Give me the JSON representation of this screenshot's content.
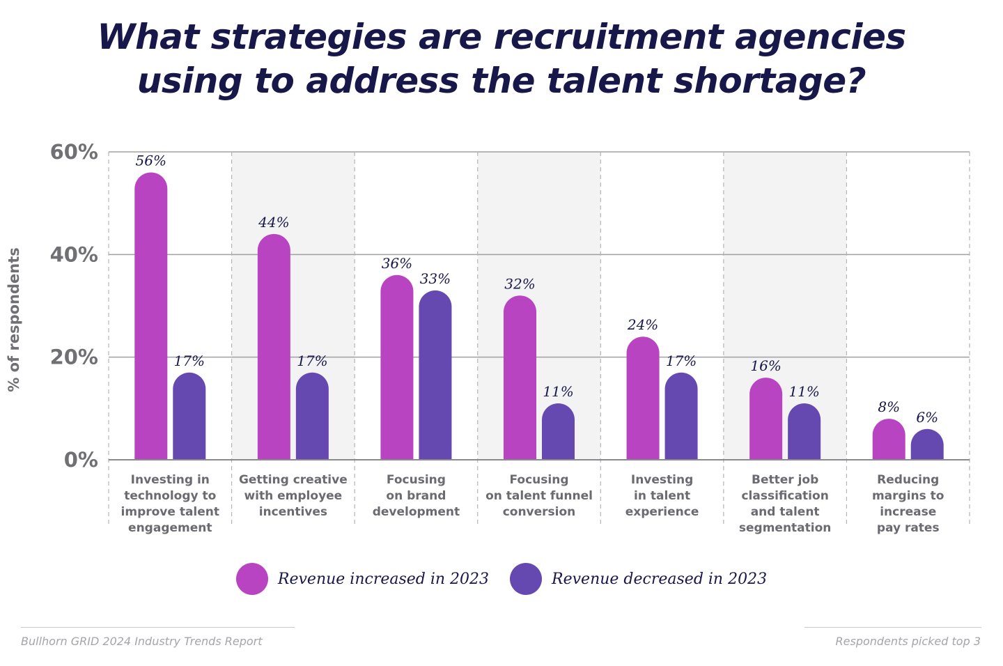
{
  "title_lines": [
    "What strategies are recruitment agencies",
    "using to address the talent shortage?"
  ],
  "footer": {
    "source": "Bullhorn GRID 2024 Industry Trends Report",
    "note": "Respondents picked top 3"
  },
  "colors": {
    "increased": "#b944c2",
    "decreased": "#6549b1",
    "title": "#17174a",
    "gridline": "#a0a0a4",
    "band": "#f3f3f3"
  },
  "chart_data": {
    "type": "bar",
    "title": "What strategies are recruitment agencies using to address the talent shortage?",
    "ylabel": "% of respondents",
    "xlabel": "",
    "ylim": [
      0,
      60
    ],
    "yticks": [
      {
        "value": 0,
        "label": "0%"
      },
      {
        "value": 20,
        "label": "20%"
      },
      {
        "value": 40,
        "label": "40%"
      },
      {
        "value": 60,
        "label": "60%"
      }
    ],
    "legend_position": "bottom",
    "categories": [
      "Investing in technology to improve talent engagement",
      "Getting creative with employee incentives",
      "Focusing on brand development",
      "Focusing on talent funnel conversion",
      "Investing in talent experience",
      "Better job classification and talent segmentation",
      "Reducing margins to increase pay rates"
    ],
    "category_lines": [
      [
        "Investing in",
        "technology to",
        "improve talent",
        "engagement"
      ],
      [
        "Getting creative",
        "with employee",
        "incentives"
      ],
      [
        "Focusing",
        "on brand",
        "development"
      ],
      [
        "Focusing",
        "on talent funnel",
        "conversion"
      ],
      [
        "Investing",
        "in talent",
        "experience"
      ],
      [
        "Better job",
        "classification",
        "and talent",
        "segmentation"
      ],
      [
        "Reducing",
        "margins to",
        "increase",
        "pay rates"
      ]
    ],
    "series": [
      {
        "name": "Revenue increased in 2023",
        "values": [
          56,
          44,
          36,
          32,
          24,
          16,
          8
        ],
        "labels": [
          "56%",
          "44%",
          "36%",
          "32%",
          "24%",
          "16%",
          "8%"
        ]
      },
      {
        "name": "Revenue decreased in 2023",
        "values": [
          17,
          17,
          33,
          11,
          17,
          11,
          6
        ],
        "labels": [
          "17%",
          "17%",
          "33%",
          "11%",
          "17%",
          "11%",
          "6%"
        ]
      }
    ]
  }
}
